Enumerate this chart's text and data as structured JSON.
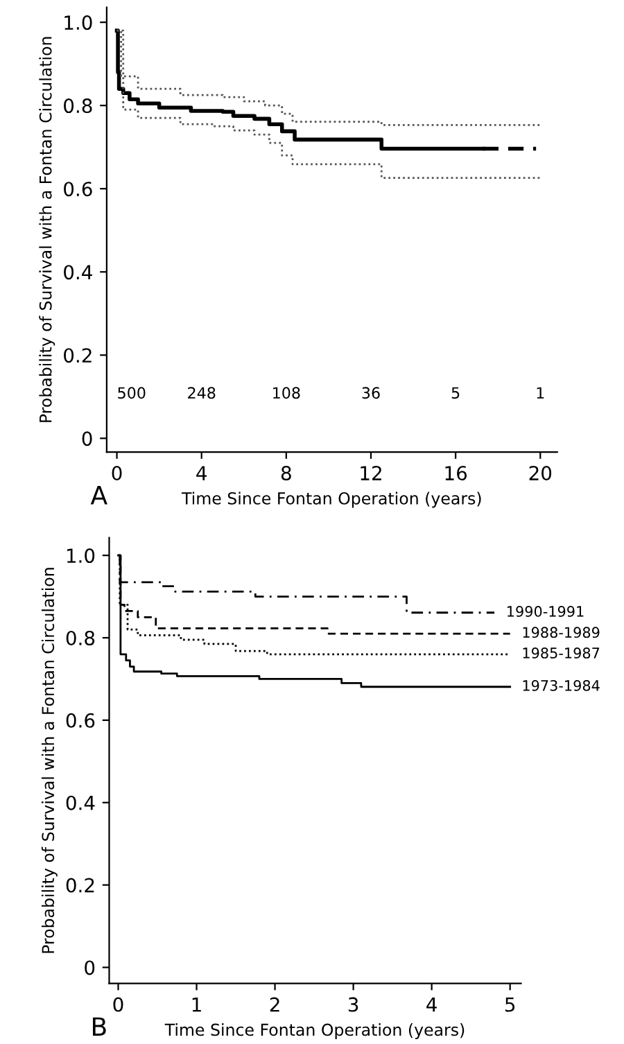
{
  "chart_data": [
    {
      "type": "step",
      "xlabel": "Time Since Fontan Operation (years)",
      "ylabel": "Probability of Survival with a Fontan Circulation",
      "xlim": [
        -0.48,
        20.8
      ],
      "ylim": [
        -0.033,
        1.036
      ],
      "xticks": [
        0,
        4,
        8,
        12,
        16,
        20
      ],
      "yticks": [
        0,
        0.2,
        0.4,
        0.6,
        0.8,
        {
          "value": 1.0,
          "label": "1.0"
        }
      ],
      "grid": false,
      "legend": false,
      "series": [
        {
          "color": "#000000",
          "line_style": "solid",
          "x": [
            0,
            0.05,
            0.1,
            0.3,
            0.6,
            1.0,
            2.0,
            3.5,
            5.0,
            5.5,
            6.5,
            7.2,
            7.8,
            8.4,
            12.5,
            17.3
          ],
          "values": [
            0.98,
            0.88,
            0.84,
            0.83,
            0.815,
            0.805,
            0.795,
            0.787,
            0.785,
            0.775,
            0.768,
            0.755,
            0.738,
            0.718,
            0.696,
            0.696
          ]
        },
        {
          "color": "#000000",
          "line_style": "dashed",
          "x": [
            17.3,
            19.8
          ],
          "values": [
            0.696,
            0.696
          ]
        },
        {
          "color": "#555555",
          "line_style": "dotted",
          "x": [
            0,
            0.2,
            1.0,
            3.0,
            5.0,
            6.0,
            7.0,
            7.8,
            8.3,
            12.5,
            20.0
          ],
          "values": [
            0.98,
            0.87,
            0.84,
            0.825,
            0.82,
            0.81,
            0.8,
            0.78,
            0.761,
            0.753,
            0.753
          ]
        },
        {
          "color": "#555555",
          "line_style": "dotted",
          "x": [
            0,
            0.3,
            1.0,
            3.0,
            4.5,
            5.5,
            6.5,
            7.2,
            7.8,
            8.3,
            12.5,
            20.0
          ],
          "values": [
            0.98,
            0.79,
            0.77,
            0.755,
            0.75,
            0.74,
            0.73,
            0.71,
            0.68,
            0.659,
            0.626,
            0.626
          ]
        }
      ],
      "title": "A",
      "annotations": [
        "500",
        "248",
        "108",
        "36",
        "5",
        "1"
      ]
    },
    {
      "type": "step",
      "xlabel": "Time Since Fontan Operation (years)",
      "ylabel": "Probability of Survival with a Fontan Circulation",
      "xlim": [
        -0.115,
        5.14
      ],
      "ylim": [
        -0.039,
        1.043
      ],
      "xticks": [
        0,
        1,
        2,
        3,
        4,
        5
      ],
      "yticks": [
        0,
        0.2,
        0.4,
        0.6,
        0.8,
        {
          "value": 1.0,
          "label": "1.0"
        }
      ],
      "grid": false,
      "legend": false,
      "series": [
        {
          "name": "1990-1991",
          "color": "#000000",
          "line_style": "dashdot",
          "x": [
            0,
            0.02,
            0.55,
            0.7,
            1.75,
            3.68,
            4.8
          ],
          "values": [
            1.0,
            0.935,
            0.925,
            0.912,
            0.9,
            0.861,
            0.861
          ]
        },
        {
          "name": "1988-1989",
          "color": "#000000",
          "line_style": "dashed",
          "x": [
            0,
            0.03,
            0.08,
            0.25,
            0.48,
            2.67,
            5.0
          ],
          "values": [
            1.0,
            0.88,
            0.865,
            0.85,
            0.823,
            0.81,
            0.81
          ]
        },
        {
          "name": "1985-1987",
          "color": "#000000",
          "line_style": "dotted",
          "x": [
            0,
            0.02,
            0.12,
            0.25,
            0.8,
            1.1,
            1.5,
            1.9,
            5.0
          ],
          "values": [
            1.0,
            0.88,
            0.82,
            0.806,
            0.795,
            0.785,
            0.768,
            0.76,
            0.76
          ]
        },
        {
          "name": "1973-1984",
          "color": "#000000",
          "line_style": "solid",
          "x": [
            0,
            0.03,
            0.1,
            0.15,
            0.2,
            0.55,
            0.75,
            1.8,
            2.85,
            3.1,
            5.0
          ],
          "values": [
            1.0,
            0.76,
            0.745,
            0.73,
            0.718,
            0.713,
            0.707,
            0.7,
            0.69,
            0.681,
            0.681
          ]
        }
      ],
      "title": "B"
    }
  ]
}
